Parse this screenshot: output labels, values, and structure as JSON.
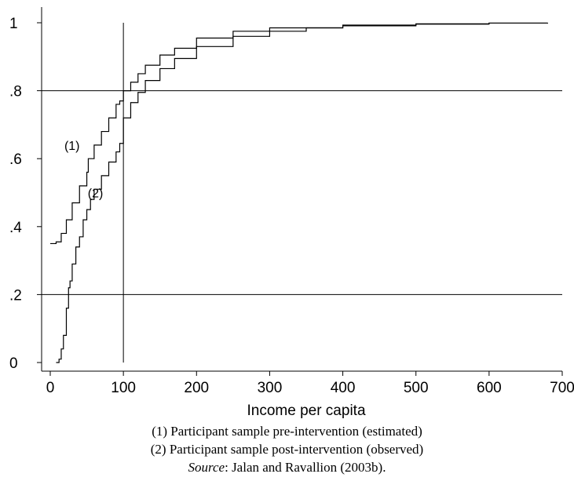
{
  "chart_data": {
    "type": "line",
    "xlabel": "Income per capita",
    "ylabel": "",
    "xlim": [
      0,
      700
    ],
    "ylim": [
      0,
      1
    ],
    "x_ticks": [
      "0",
      "100",
      "200",
      "300",
      "400",
      "500",
      "600",
      "700"
    ],
    "y_ticks": [
      {
        "value": 0,
        "label": "0"
      },
      {
        "value": 0.2,
        "label": ".2"
      },
      {
        "value": 0.4,
        "label": ".4"
      },
      {
        "value": 0.6,
        "label": ".6"
      },
      {
        "value": 0.8,
        "label": ".8"
      },
      {
        "value": 1,
        "label": "1"
      }
    ],
    "reference_lines": {
      "horizontal": [
        0.2,
        0.8
      ],
      "vertical": [
        100
      ]
    },
    "series": [
      {
        "name": "(1)",
        "color": "#000000",
        "x": [
          0,
          8,
          15,
          22,
          30,
          40,
          50,
          52,
          60,
          70,
          80,
          90,
          95,
          100,
          110,
          120,
          130,
          150,
          170,
          200,
          250,
          300,
          400,
          500,
          600,
          680
        ],
        "y": [
          0.35,
          0.355,
          0.38,
          0.42,
          0.47,
          0.52,
          0.56,
          0.6,
          0.64,
          0.68,
          0.72,
          0.76,
          0.77,
          0.8,
          0.825,
          0.85,
          0.875,
          0.905,
          0.925,
          0.955,
          0.975,
          0.985,
          0.993,
          0.997,
          0.999,
          1.0
        ]
      },
      {
        "name": "(2)",
        "color": "#000000",
        "x": [
          8,
          12,
          15,
          18,
          22,
          25,
          27,
          30,
          35,
          40,
          45,
          50,
          55,
          60,
          70,
          80,
          90,
          95,
          100,
          110,
          120,
          130,
          150,
          170,
          200,
          250,
          300,
          350,
          400,
          500,
          600,
          680
        ],
        "y": [
          0.0,
          0.01,
          0.04,
          0.08,
          0.16,
          0.22,
          0.24,
          0.29,
          0.34,
          0.37,
          0.42,
          0.45,
          0.48,
          0.51,
          0.55,
          0.59,
          0.62,
          0.645,
          0.72,
          0.765,
          0.795,
          0.83,
          0.865,
          0.895,
          0.93,
          0.96,
          0.975,
          0.985,
          0.991,
          0.996,
          0.999,
          1.0
        ]
      }
    ],
    "annotations": [
      {
        "text": "(1)",
        "x": 30,
        "y": 0.64
      },
      {
        "text": "(2)",
        "x": 62,
        "y": 0.5
      }
    ]
  },
  "caption": {
    "line1": "(1) Participant sample pre-intervention (estimated)",
    "line2": "(2) Participant sample post-intervention (observed)",
    "source_word": "Source",
    "source_rest": ": Jalan and Ravallion (2003b)."
  }
}
